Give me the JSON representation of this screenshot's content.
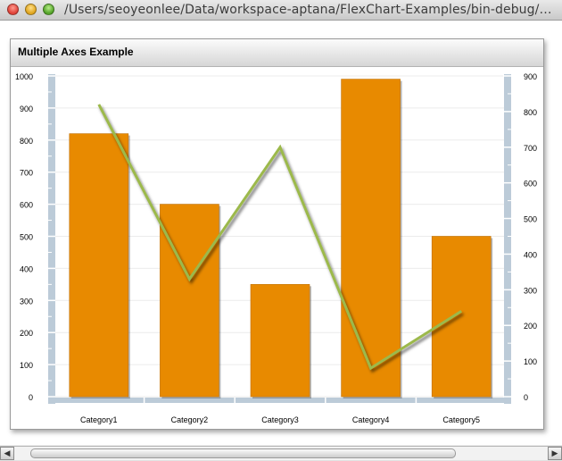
{
  "window": {
    "title": "/Users/seoyeonlee/Data/workspace-aptana/FlexChart-Examples/bin-debug/AxesC..."
  },
  "panel": {
    "title": "Multiple Axes Example"
  },
  "colors": {
    "bar": "#e88a00",
    "bar_edge": "#c06f00",
    "line": "#9cb94b",
    "axis": "#bccbd8",
    "grid": "#ececec",
    "tick_text": "#000000"
  },
  "chart_data": {
    "type": "bar",
    "title": "Multiple Axes Example",
    "categories": [
      "Category1",
      "Category2",
      "Category3",
      "Category4",
      "Category5"
    ],
    "series": [
      {
        "type": "bar",
        "axis": "left",
        "values": [
          820,
          600,
          350,
          990,
          500
        ]
      },
      {
        "type": "line",
        "axis": "right",
        "values": [
          820,
          330,
          700,
          80,
          240
        ]
      }
    ],
    "y_left": {
      "lim": [
        0,
        1000
      ],
      "ticks": [
        "0",
        "100",
        "200",
        "300",
        "400",
        "500",
        "600",
        "700",
        "800",
        "900",
        "1000"
      ]
    },
    "y_right": {
      "lim": [
        0,
        900
      ],
      "ticks": [
        "0",
        "100",
        "200",
        "300",
        "400",
        "500",
        "600",
        "700",
        "800",
        "900"
      ]
    },
    "grid": true,
    "legend": "none"
  }
}
